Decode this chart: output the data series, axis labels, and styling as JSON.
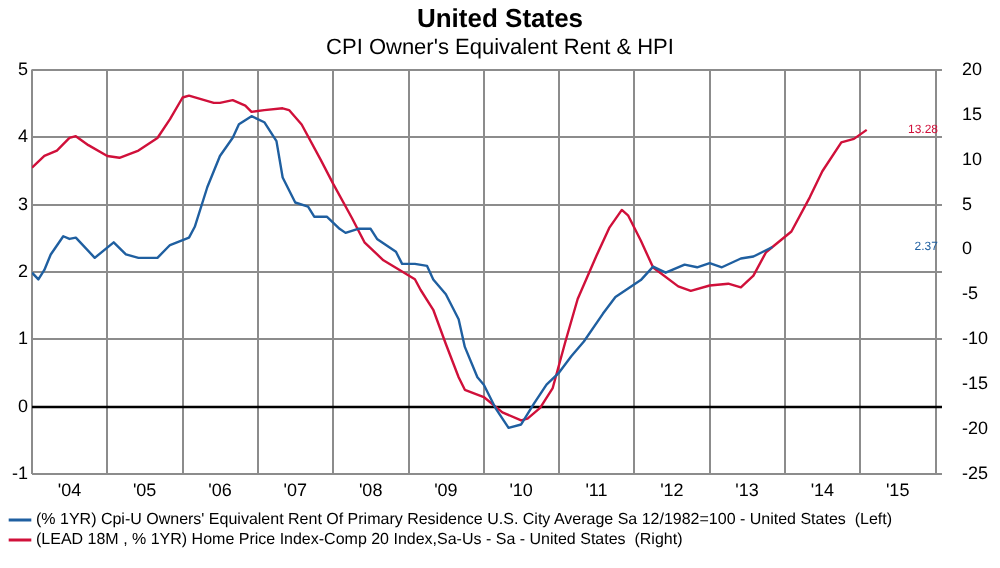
{
  "chart_data": {
    "type": "line",
    "title": "United States",
    "subtitle": "CPI Owner's Equivalent Rent & HPI",
    "xlim": [
      "2004-01",
      "2016-02"
    ],
    "xticks": [
      {
        "value": "2004",
        "label": null
      },
      {
        "value": "2004-07",
        "label": "'04"
      },
      {
        "value": "2005",
        "label": null
      },
      {
        "value": "2005-07",
        "label": "'05"
      },
      {
        "value": "2006",
        "label": null
      },
      {
        "value": "2006-07",
        "label": "'06"
      },
      {
        "value": "2007",
        "label": null
      },
      {
        "value": "2007-07",
        "label": "'07"
      },
      {
        "value": "2008",
        "label": null
      },
      {
        "value": "2008-07",
        "label": "'08"
      },
      {
        "value": "2009",
        "label": null
      },
      {
        "value": "2009-07",
        "label": "'09"
      },
      {
        "value": "2010",
        "label": null
      },
      {
        "value": "2010-07",
        "label": "'10"
      },
      {
        "value": "2011",
        "label": null
      },
      {
        "value": "2011-07",
        "label": "'11"
      },
      {
        "value": "2012",
        "label": null
      },
      {
        "value": "2012-07",
        "label": "'12"
      },
      {
        "value": "2013",
        "label": null
      },
      {
        "value": "2013-07",
        "label": "'13"
      },
      {
        "value": "2014",
        "label": null
      },
      {
        "value": "2014-07",
        "label": "'14"
      },
      {
        "value": "2015",
        "label": null
      },
      {
        "value": "2015-07",
        "label": "'15"
      },
      {
        "value": "2016",
        "label": null
      }
    ],
    "ylim": [
      -1,
      5
    ],
    "yticks": [
      -1,
      0,
      1,
      2,
      3,
      4,
      5
    ],
    "y2lim": [
      -25,
      20
    ],
    "y2ticks": [
      -25,
      -20,
      -15,
      -10,
      -5,
      0,
      5,
      10,
      15,
      20
    ],
    "grid": true,
    "legend": "bottom",
    "marker": "none",
    "line_style": "solid",
    "ref_lines": [
      {
        "axis": "y",
        "value": 0,
        "color": "#000000"
      }
    ],
    "annotations": [
      "2.37",
      "13.28"
    ],
    "series": [
      {
        "name": "(% 1YR) Cpi-U Owners' Equivalent Rent Of Primary Residence U.S. City Average Sa 12/1982=100 - United States  (Left)",
        "color": "#1f5fa0",
        "axis": "y",
        "x": [
          "2004-01",
          "2004-02",
          "2004-03",
          "2004-04",
          "2004-06",
          "2004-07",
          "2004-08",
          "2004-11",
          "2005-02",
          "2005-04",
          "2005-06",
          "2005-09",
          "2005-11",
          "2006-02",
          "2006-03",
          "2006-05",
          "2006-07",
          "2006-09",
          "2006-10",
          "2006-12",
          "2007-02",
          "2007-04",
          "2007-05",
          "2007-07",
          "2007-09",
          "2007-10",
          "2007-12",
          "2008-02",
          "2008-03",
          "2008-05",
          "2008-07",
          "2008-08",
          "2008-11",
          "2008-12",
          "2009-02",
          "2009-04",
          "2009-05",
          "2009-07",
          "2009-09",
          "2009-10",
          "2009-12",
          "2010-01",
          "2010-03",
          "2010-05",
          "2010-07",
          "2010-09",
          "2010-11",
          "2011-01",
          "2011-03",
          "2011-05",
          "2011-08",
          "2011-10",
          "2012-02",
          "2012-04",
          "2012-06",
          "2012-09",
          "2012-11",
          "2013-01",
          "2013-03",
          "2013-06",
          "2013-08",
          "2013-11"
        ],
        "values": [
          1.99,
          1.89,
          2.03,
          2.26,
          2.53,
          2.49,
          2.51,
          2.21,
          2.44,
          2.26,
          2.21,
          2.21,
          2.4,
          2.51,
          2.67,
          3.26,
          3.72,
          3.99,
          4.19,
          4.31,
          4.22,
          3.94,
          3.4,
          3.03,
          2.97,
          2.82,
          2.82,
          2.64,
          2.58,
          2.64,
          2.64,
          2.49,
          2.3,
          2.12,
          2.12,
          2.09,
          1.89,
          1.67,
          1.3,
          0.89,
          0.44,
          0.33,
          -0.03,
          -0.31,
          -0.26,
          0.05,
          0.33,
          0.51,
          0.75,
          0.97,
          1.38,
          1.63,
          1.88,
          2.08,
          1.99,
          2.11,
          2.07,
          2.13,
          2.07,
          2.2,
          2.23,
          2.37
        ]
      },
      {
        "name": "(LEAD 18M , % 1YR) Home Price Index-Comp 20 Index,Sa-Us - Sa - United States  (Right)",
        "color": "#d0103a",
        "axis": "y2",
        "x": [
          "2004-01",
          "2004-03",
          "2004-05",
          "2004-07",
          "2004-08",
          "2004-10",
          "2005-01",
          "2005-03",
          "2005-06",
          "2005-09",
          "2005-11",
          "2006-01",
          "2006-02",
          "2006-06",
          "2006-07",
          "2006-09",
          "2006-11",
          "2006-12",
          "2007-02",
          "2007-05",
          "2007-06",
          "2007-08",
          "2007-11",
          "2008-01",
          "2008-04",
          "2008-06",
          "2008-09",
          "2009-02",
          "2009-03",
          "2009-05",
          "2009-07",
          "2009-09",
          "2009-10",
          "2010-01",
          "2010-04",
          "2010-07",
          "2010-08",
          "2010-10",
          "2010-12",
          "2011-02",
          "2011-04",
          "2011-07",
          "2011-09",
          "2011-11",
          "2011-12",
          "2012-02",
          "2012-04",
          "2012-08",
          "2012-10",
          "2013-01",
          "2013-04",
          "2013-06",
          "2013-08",
          "2013-10",
          "2014-02",
          "2014-05",
          "2014-07",
          "2014-10",
          "2014-12",
          "2015-02"
        ],
        "values": [
          9.1,
          10.4,
          11.0,
          12.4,
          12.6,
          11.6,
          10.4,
          10.2,
          11.0,
          12.4,
          14.5,
          16.9,
          17.1,
          16.3,
          16.3,
          16.6,
          16.0,
          15.3,
          15.5,
          15.7,
          15.5,
          13.9,
          10.0,
          7.3,
          3.5,
          0.8,
          -1.2,
          -3.3,
          -4.5,
          -6.7,
          -10.5,
          -14.2,
          -15.6,
          -16.4,
          -18.1,
          -19.0,
          -18.8,
          -17.6,
          -15.4,
          -10.2,
          -5.5,
          -0.7,
          2.4,
          4.4,
          3.8,
          1.0,
          -2.0,
          -4.1,
          -4.6,
          -4.0,
          -3.8,
          -4.2,
          -2.9,
          -0.3,
          2.0,
          5.8,
          8.7,
          11.9,
          12.3,
          13.3
        ]
      }
    ]
  }
}
